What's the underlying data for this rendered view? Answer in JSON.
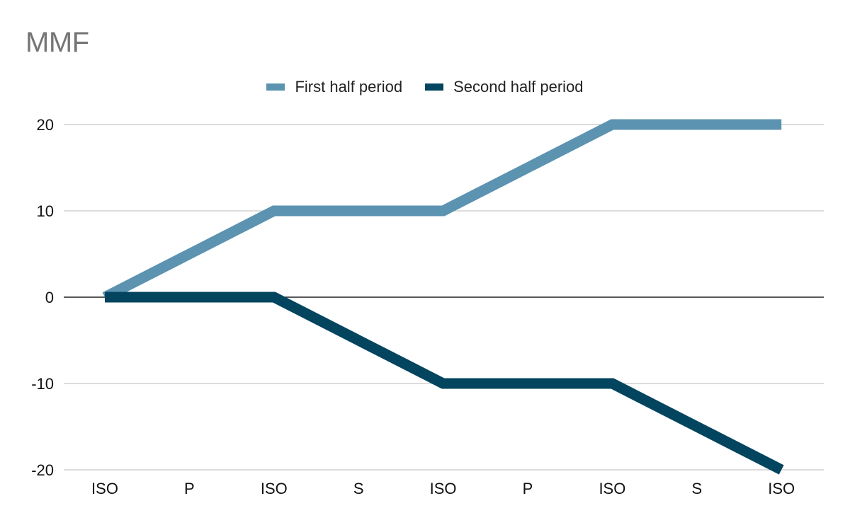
{
  "chart_data": {
    "type": "line",
    "title": "MMF",
    "categories": [
      "ISO",
      "P",
      "ISO",
      "S",
      "ISO",
      "P",
      "ISO",
      "S",
      "ISO"
    ],
    "series": [
      {
        "name": "First half period",
        "color": "#5b93b0",
        "values": [
          0,
          5,
          10,
          10,
          10,
          15,
          20,
          20,
          20
        ]
      },
      {
        "name": "Second half period",
        "color": "#03445f",
        "values": [
          0,
          0,
          0,
          -5,
          -10,
          -10,
          -10,
          -15,
          -20
        ]
      }
    ],
    "ylim": [
      -20,
      20
    ],
    "yticks": [
      20,
      10,
      0,
      -10,
      -20
    ],
    "grid": true,
    "legend": "top-center"
  }
}
